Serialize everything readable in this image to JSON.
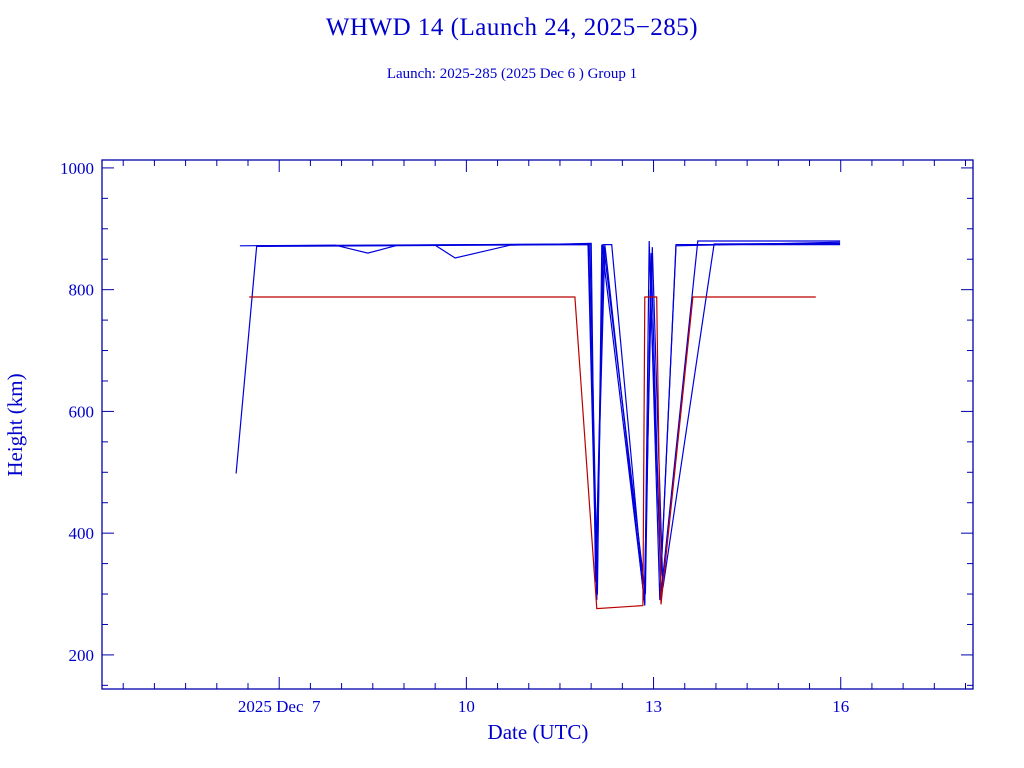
{
  "chart_data": {
    "type": "line",
    "title": "WHWD 14 (Launch 24, 2025−285)",
    "subtitle": "Launch: 2025-285  (2025 Dec  6 )  Group 1",
    "xlabel": "Date (UTC)",
    "ylabel": "Height (km)",
    "xlim": [
      4.16,
      18.12
    ],
    "ylim": [
      144,
      1013
    ],
    "x_ticks": [
      {
        "value": 7,
        "label": "2025 Dec  7"
      },
      {
        "value": 10,
        "label": "10"
      },
      {
        "value": 13,
        "label": "13"
      },
      {
        "value": 16,
        "label": "16"
      }
    ],
    "x_minor_step": 0.5,
    "y_ticks": [
      {
        "value": 200,
        "label": "200"
      },
      {
        "value": 400,
        "label": "400"
      },
      {
        "value": 600,
        "label": "600"
      },
      {
        "value": 800,
        "label": "800"
      },
      {
        "value": 1000,
        "label": "1000"
      }
    ],
    "y_minor_step": 50,
    "grid": false,
    "colors": {
      "axis": "#0000aa",
      "text": "#0000cc",
      "blue": "#0000dd",
      "red": "#bb0000"
    },
    "series": [
      {
        "name": "object-1",
        "color": "#0000dd",
        "x": [
          6.31,
          6.64,
          11.95,
          12.09,
          12.19,
          12.33,
          12.86,
          12.93,
          13.1,
          13.36,
          15.99
        ],
        "y": [
          498,
          872,
          875,
          290,
          874,
          874,
          281,
          880,
          290,
          874,
          874
        ]
      },
      {
        "name": "object-2",
        "color": "#0000dd",
        "x": [
          6.37,
          7.9,
          8.42,
          8.9,
          11.98,
          12.1,
          12.17,
          12.86,
          12.96,
          13.12,
          13.71,
          15.99
        ],
        "y": [
          872,
          873,
          860,
          873,
          875,
          299,
          874,
          285,
          860,
          300,
          880,
          880
        ]
      },
      {
        "name": "object-3",
        "color": "#0000dd",
        "x": [
          6.64,
          9.5,
          9.82,
          10.7,
          12.0,
          12.07,
          12.22,
          12.85,
          12.98,
          13.15,
          13.97,
          15.99
        ],
        "y": [
          872,
          873,
          852,
          873,
          876,
          320,
          873,
          290,
          870,
          310,
          875,
          876
        ]
      },
      {
        "name": "object-4",
        "color": "#0000dd",
        "x": [
          6.64,
          11.96,
          12.08,
          12.2,
          12.87,
          12.95,
          13.12,
          13.36,
          15.99
        ],
        "y": [
          871,
          874,
          350,
          872,
          300,
          800,
          330,
          872,
          878
        ]
      },
      {
        "name": "object-red",
        "color": "#bb0000",
        "x": [
          6.52,
          11.74,
          12.09,
          12.83,
          12.86,
          13.05,
          13.12,
          13.63,
          15.6
        ],
        "y": [
          788,
          788,
          276,
          281,
          788,
          788,
          283,
          788,
          788
        ]
      }
    ]
  }
}
